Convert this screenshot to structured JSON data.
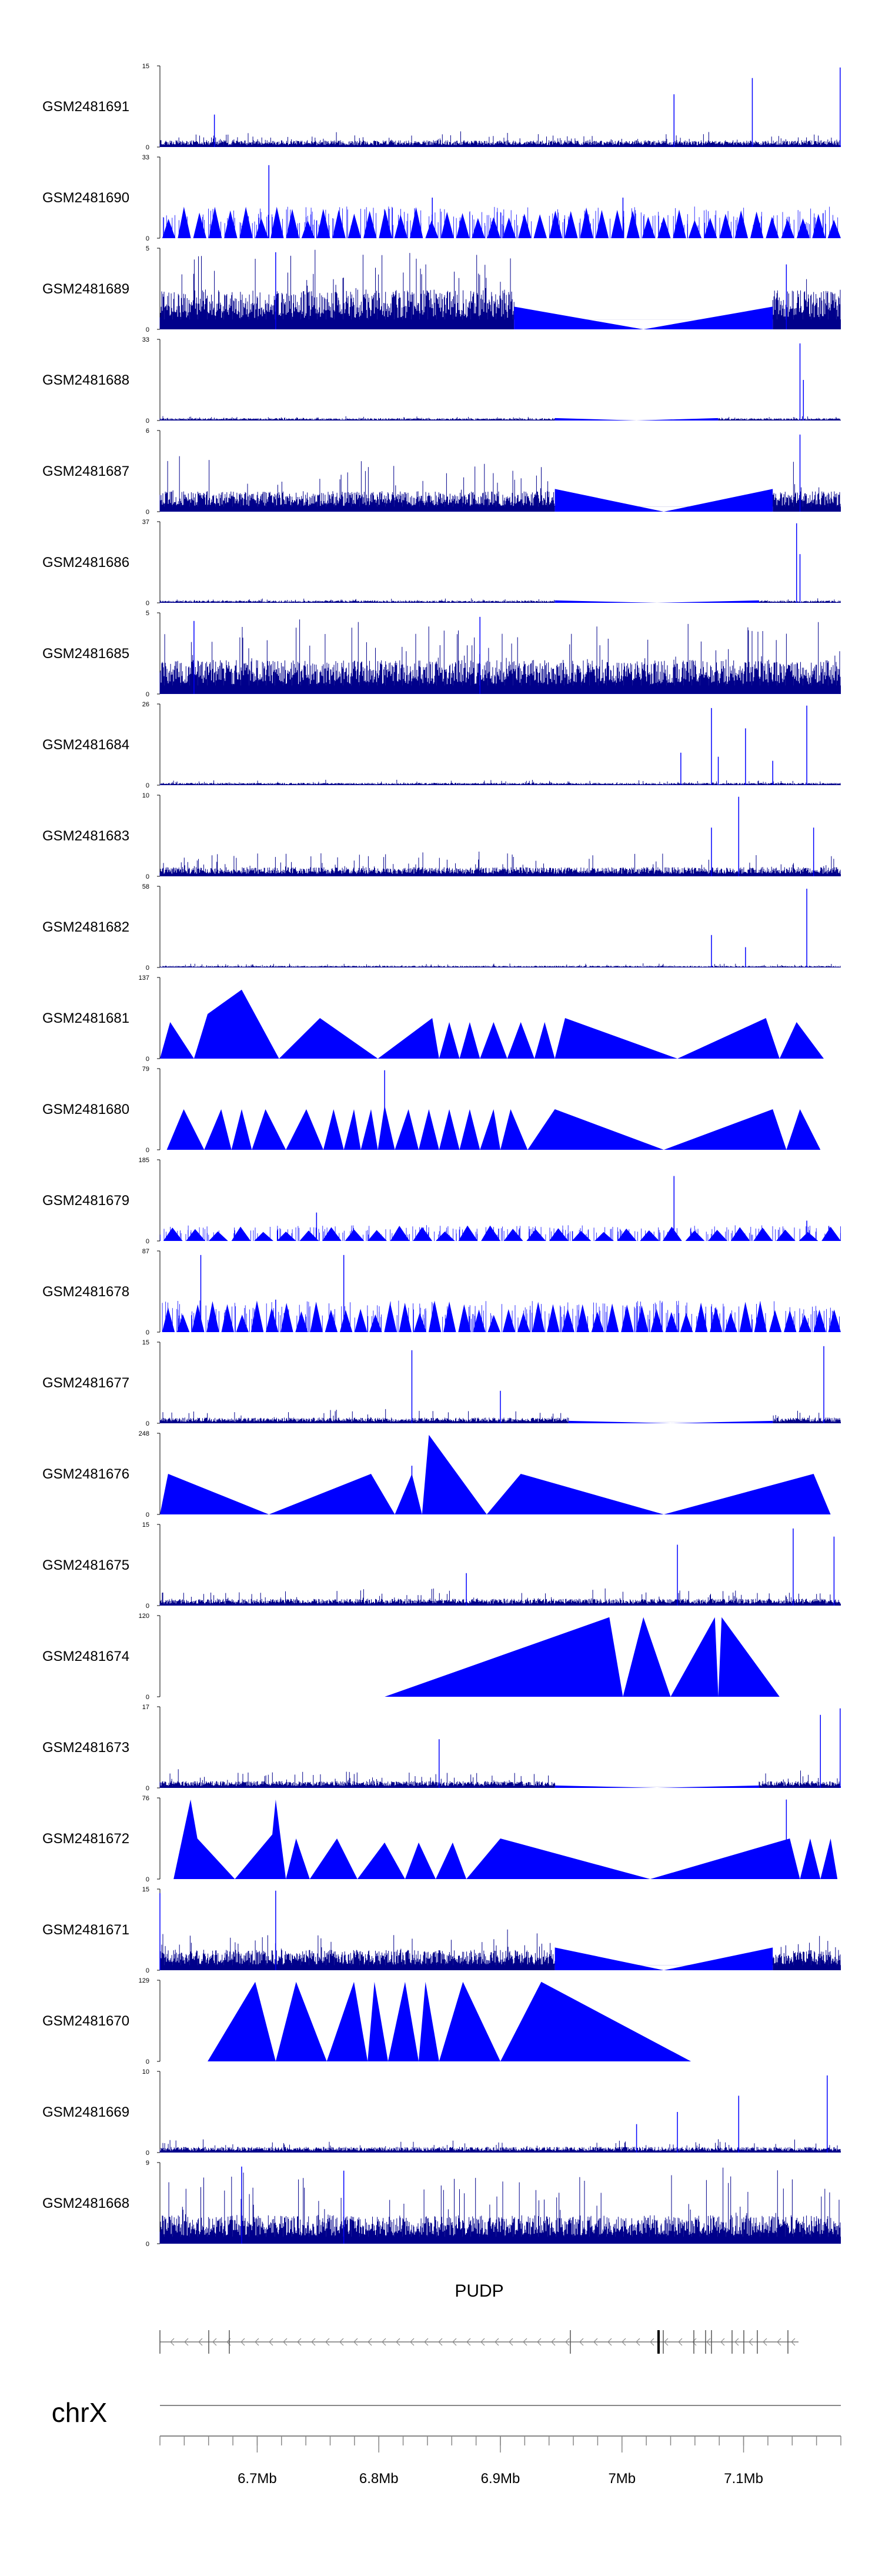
{
  "chart_data": {
    "type": "area",
    "title": "",
    "xlabel": "",
    "ylabel": "",
    "chromosome": "chrX",
    "gene": "PUDP",
    "x_range_bp": [
      6620000,
      7180000
    ],
    "x_ticks": [
      {
        "pos": 6700000,
        "label": "6.7Mb"
      },
      {
        "pos": 6800000,
        "label": "6.8Mb"
      },
      {
        "pos": 6900000,
        "label": "6.9Mb"
      },
      {
        "pos": 7000000,
        "label": "7Mb"
      },
      {
        "pos": 7100000,
        "label": "7.1Mb"
      }
    ],
    "color": "#0000ff",
    "noise_color": "#00008b",
    "series": [
      {
        "name": "GSM2481691",
        "ymax": 15,
        "pattern": "noise",
        "base": 0.06,
        "var": 0.12,
        "spikes": [
          [
            0.08,
            0.4
          ],
          [
            0.755,
            0.65
          ],
          [
            0.87,
            0.85
          ],
          [
            0.999,
            0.98
          ]
        ]
      },
      {
        "name": "GSM2481690",
        "ymax": 33,
        "pattern": "triangles",
        "tri": 44,
        "tri_h": 0.3,
        "spikes": [
          [
            0.16,
            0.9
          ],
          [
            0.4,
            0.5
          ],
          [
            0.68,
            0.5
          ]
        ]
      },
      {
        "name": "GSM2481689",
        "ymax": 5,
        "pattern": "dense_gap",
        "gap": [
          0.52,
          0.9
        ],
        "base": 0.35,
        "var": 0.6,
        "spikes": [
          [
            0.17,
            0.95
          ],
          [
            0.92,
            0.8
          ]
        ]
      },
      {
        "name": "GSM2481688",
        "ymax": 33,
        "pattern": "noise",
        "base": 0.02,
        "var": 0.03,
        "gap": [
          0.58,
          0.82
        ],
        "spikes": [
          [
            0.94,
            0.95
          ],
          [
            0.945,
            0.5
          ]
        ]
      },
      {
        "name": "GSM2481687",
        "ymax": 6,
        "pattern": "dense_gap",
        "gap": [
          0.58,
          0.9
        ],
        "base": 0.18,
        "var": 0.5,
        "spikes": [
          [
            0.94,
            0.95
          ]
        ]
      },
      {
        "name": "GSM2481686",
        "ymax": 37,
        "pattern": "noise",
        "base": 0.02,
        "var": 0.03,
        "gap": [
          0.58,
          0.88
        ],
        "spikes": [
          [
            0.935,
            0.98
          ],
          [
            0.94,
            0.6
          ]
        ]
      },
      {
        "name": "GSM2481685",
        "ymax": 5,
        "pattern": "dense",
        "base": 0.3,
        "var": 0.6,
        "spikes": [
          [
            0.05,
            0.9
          ],
          [
            0.47,
            0.95
          ]
        ]
      },
      {
        "name": "GSM2481684",
        "ymax": 26,
        "pattern": "noise",
        "base": 0.02,
        "var": 0.04,
        "spikes": [
          [
            0.765,
            0.4
          ],
          [
            0.81,
            0.95
          ],
          [
            0.82,
            0.35
          ],
          [
            0.86,
            0.7
          ],
          [
            0.9,
            0.3
          ],
          [
            0.95,
            0.98
          ]
        ]
      },
      {
        "name": "GSM2481683",
        "ymax": 10,
        "pattern": "noise",
        "base": 0.08,
        "var": 0.22,
        "spikes": [
          [
            0.85,
            0.98
          ],
          [
            0.81,
            0.6
          ],
          [
            0.96,
            0.6
          ]
        ]
      },
      {
        "name": "GSM2481682",
        "ymax": 58,
        "pattern": "noise",
        "base": 0.015,
        "var": 0.03,
        "spikes": [
          [
            0.81,
            0.4
          ],
          [
            0.86,
            0.25
          ],
          [
            0.95,
            0.97
          ]
        ]
      },
      {
        "name": "GSM2481681",
        "ymax": 137,
        "pattern": "peaks",
        "points": [
          [
            0.0,
            0
          ],
          [
            0.015,
            0.45
          ],
          [
            0.05,
            0
          ],
          [
            0.07,
            0.55
          ],
          [
            0.12,
            0.85
          ],
          [
            0.175,
            0
          ],
          [
            0.235,
            0.5
          ],
          [
            0.32,
            0
          ],
          [
            0.4,
            0.5
          ],
          [
            0.41,
            0
          ],
          [
            0.425,
            0.45
          ],
          [
            0.44,
            0
          ],
          [
            0.455,
            0.45
          ],
          [
            0.47,
            0
          ],
          [
            0.49,
            0.45
          ],
          [
            0.51,
            0
          ],
          [
            0.53,
            0.45
          ],
          [
            0.55,
            0
          ],
          [
            0.565,
            0.45
          ],
          [
            0.58,
            0
          ],
          [
            0.595,
            0.5
          ],
          [
            0.76,
            0
          ],
          [
            0.89,
            0.5
          ],
          [
            0.91,
            0
          ],
          [
            0.935,
            0.45
          ],
          [
            0.975,
            0
          ]
        ]
      },
      {
        "name": "GSM2481680",
        "ymax": 79,
        "pattern": "peaks",
        "points": [
          [
            0.01,
            0
          ],
          [
            0.035,
            0.5
          ],
          [
            0.065,
            0
          ],
          [
            0.09,
            0.5
          ],
          [
            0.105,
            0
          ],
          [
            0.12,
            0.5
          ],
          [
            0.135,
            0
          ],
          [
            0.155,
            0.5
          ],
          [
            0.185,
            0
          ],
          [
            0.215,
            0.5
          ],
          [
            0.24,
            0
          ],
          [
            0.255,
            0.5
          ],
          [
            0.27,
            0
          ],
          [
            0.285,
            0.5
          ],
          [
            0.295,
            0
          ],
          [
            0.31,
            0.5
          ],
          [
            0.32,
            0
          ],
          [
            0.33,
            0.55
          ],
          [
            0.345,
            0
          ],
          [
            0.365,
            0.5
          ],
          [
            0.38,
            0
          ],
          [
            0.395,
            0.5
          ],
          [
            0.41,
            0
          ],
          [
            0.425,
            0.5
          ],
          [
            0.44,
            0
          ],
          [
            0.455,
            0.5
          ],
          [
            0.47,
            0
          ],
          [
            0.49,
            0.5
          ],
          [
            0.5,
            0
          ],
          [
            0.515,
            0.5
          ],
          [
            0.54,
            0
          ],
          [
            0.58,
            0.5
          ],
          [
            0.74,
            0
          ],
          [
            0.9,
            0.5
          ],
          [
            0.92,
            0
          ],
          [
            0.94,
            0.5
          ],
          [
            0.97,
            0
          ]
        ],
        "spikes": [
          [
            0.33,
            0.98
          ]
        ]
      },
      {
        "name": "GSM2481679",
        "ymax": 185,
        "pattern": "peaks_low",
        "tri": 30,
        "tri_h": 0.15,
        "spikes": [
          [
            0.23,
            0.35
          ],
          [
            0.755,
            0.8
          ],
          [
            0.95,
            0.25
          ]
        ]
      },
      {
        "name": "GSM2481678",
        "ymax": 87,
        "pattern": "triangles",
        "tri": 46,
        "tri_h": 0.3,
        "spikes": [
          [
            0.06,
            0.95
          ],
          [
            0.27,
            0.95
          ],
          [
            0.17,
            0.4
          ]
        ]
      },
      {
        "name": "GSM2481677",
        "ymax": 15,
        "pattern": "noise",
        "base": 0.05,
        "var": 0.12,
        "gap": [
          0.6,
          0.9
        ],
        "spikes": [
          [
            0.37,
            0.9
          ],
          [
            0.975,
            0.95
          ],
          [
            0.5,
            0.4
          ]
        ]
      },
      {
        "name": "GSM2481676",
        "ymax": 248,
        "pattern": "peaks",
        "points": [
          [
            0.0,
            0
          ],
          [
            0.012,
            0.5
          ],
          [
            0.16,
            0
          ],
          [
            0.31,
            0.5
          ],
          [
            0.345,
            0
          ],
          [
            0.37,
            0.5
          ],
          [
            0.385,
            0
          ],
          [
            0.395,
            0.98
          ],
          [
            0.48,
            0
          ],
          [
            0.53,
            0.5
          ],
          [
            0.74,
            0
          ],
          [
            0.96,
            0.5
          ],
          [
            0.985,
            0
          ]
        ],
        "spikes": [
          [
            0.37,
            0.6
          ]
        ]
      },
      {
        "name": "GSM2481675",
        "ymax": 15,
        "pattern": "noise",
        "base": 0.06,
        "var": 0.14,
        "spikes": [
          [
            0.76,
            0.75
          ],
          [
            0.93,
            0.95
          ],
          [
            0.99,
            0.85
          ],
          [
            0.45,
            0.4
          ]
        ]
      },
      {
        "name": "GSM2481674",
        "ymax": 120,
        "pattern": "peaks",
        "points": [
          [
            0.33,
            0
          ],
          [
            0.66,
            0.98
          ],
          [
            0.68,
            0
          ],
          [
            0.71,
            0.98
          ],
          [
            0.75,
            0
          ],
          [
            0.815,
            0.98
          ],
          [
            0.82,
            0
          ],
          [
            0.825,
            0.98
          ],
          [
            0.91,
            0
          ]
        ]
      },
      {
        "name": "GSM2481673",
        "ymax": 17,
        "pattern": "noise",
        "base": 0.06,
        "var": 0.15,
        "gap": [
          0.58,
          0.88
        ],
        "spikes": [
          [
            0.41,
            0.6
          ],
          [
            0.97,
            0.9
          ],
          [
            0.999,
            0.98
          ]
        ]
      },
      {
        "name": "GSM2481672",
        "ymax": 76,
        "pattern": "peaks",
        "points": [
          [
            0.02,
            0
          ],
          [
            0.045,
            0.98
          ],
          [
            0.055,
            0.5
          ],
          [
            0.11,
            0
          ],
          [
            0.165,
            0.55
          ],
          [
            0.17,
            0.98
          ],
          [
            0.185,
            0
          ],
          [
            0.2,
            0.5
          ],
          [
            0.22,
            0
          ],
          [
            0.26,
            0.5
          ],
          [
            0.29,
            0
          ],
          [
            0.33,
            0.45
          ],
          [
            0.36,
            0
          ],
          [
            0.38,
            0.45
          ],
          [
            0.405,
            0
          ],
          [
            0.43,
            0.45
          ],
          [
            0.45,
            0
          ],
          [
            0.5,
            0.5
          ],
          [
            0.72,
            0
          ],
          [
            0.925,
            0.5
          ],
          [
            0.94,
            0
          ],
          [
            0.955,
            0.5
          ],
          [
            0.97,
            0
          ],
          [
            0.985,
            0.5
          ],
          [
            0.995,
            0
          ]
        ],
        "spikes": [
          [
            0.92,
            0.98
          ]
        ]
      },
      {
        "name": "GSM2481671",
        "ymax": 15,
        "pattern": "noise_gap",
        "gap": [
          0.58,
          0.9
        ],
        "base": 0.18,
        "var": 0.3,
        "spikes": [
          [
            0.0,
            0.95
          ],
          [
            0.17,
            0.98
          ]
        ]
      },
      {
        "name": "GSM2481670",
        "ymax": 129,
        "pattern": "peaks",
        "points": [
          [
            0.07,
            0
          ],
          [
            0.14,
            0.98
          ],
          [
            0.17,
            0
          ],
          [
            0.2,
            0.98
          ],
          [
            0.245,
            0
          ],
          [
            0.285,
            0.98
          ],
          [
            0.305,
            0
          ],
          [
            0.315,
            0.98
          ],
          [
            0.335,
            0
          ],
          [
            0.36,
            0.98
          ],
          [
            0.38,
            0
          ],
          [
            0.39,
            0.98
          ],
          [
            0.41,
            0
          ],
          [
            0.445,
            0.98
          ],
          [
            0.5,
            0
          ],
          [
            0.56,
            0.98
          ],
          [
            0.78,
            0
          ]
        ]
      },
      {
        "name": "GSM2481669",
        "ymax": 10,
        "pattern": "noise",
        "base": 0.05,
        "var": 0.1,
        "spikes": [
          [
            0.76,
            0.5
          ],
          [
            0.85,
            0.7
          ],
          [
            0.98,
            0.95
          ],
          [
            0.7,
            0.35
          ]
        ]
      },
      {
        "name": "GSM2481668",
        "ymax": 9,
        "pattern": "dense",
        "base": 0.25,
        "var": 0.65,
        "spikes": [
          [
            0.12,
            0.95
          ],
          [
            0.27,
            0.9
          ]
        ]
      }
    ]
  }
}
